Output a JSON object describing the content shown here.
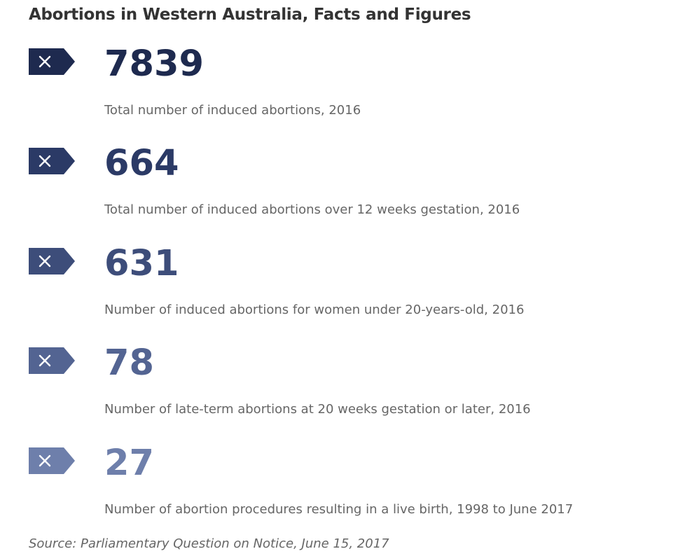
{
  "title": "Abortions in Western Australia, Facts and Figures",
  "stats": [
    {
      "value": "7839",
      "description": "Total number of induced abortions, 2016",
      "color": "#1e2a4f",
      "icon": "close-icon"
    },
    {
      "value": "664",
      "description": "Total number of induced abortions over 12 weeks gestation, 2016",
      "color": "#2b3a66",
      "icon": "close-icon"
    },
    {
      "value": "631",
      "description": "Number of induced abortions for women under 20-years-old, 2016",
      "color": "#3d4d7a",
      "icon": "close-icon"
    },
    {
      "value": "78",
      "description": "Number of late-term abortions at 20 weeks gestation or later, 2016",
      "color": "#536492",
      "icon": "close-icon"
    },
    {
      "value": "27",
      "description": "Number of abortion procedures resulting in a live birth, 1998 to June 2017",
      "color": "#6e7fab",
      "icon": "close-icon"
    }
  ],
  "source": "Source: Parliamentary Question on Notice, June 15, 2017"
}
